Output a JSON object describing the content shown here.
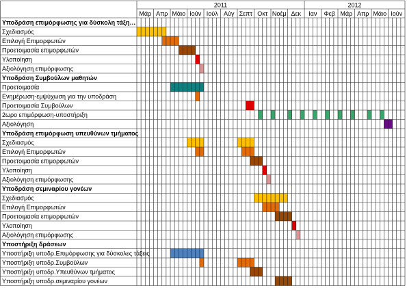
{
  "chart_data": {
    "type": "gantt",
    "years": [
      {
        "label": "2011",
        "span": 10
      },
      {
        "label": "2012",
        "span": 6
      }
    ],
    "months": [
      "Μάρ",
      "Απρ",
      "Μάιο",
      "Ιούν",
      "Ιούλ",
      "Αύγ",
      "Σεπτ",
      "Οκτ",
      "Νοέμ",
      "Δεκ",
      "Ιαν",
      "Φεβ",
      "Μάρ",
      "Απρ",
      "Μάιο",
      "Ιούν"
    ],
    "rows": [
      {
        "label": "Υποδράση επιμόρφωσης για δύσκολη τάξη…",
        "bold": true,
        "bars": []
      },
      {
        "label": "Σχεδιασμός",
        "bars": [
          {
            "start": 0,
            "length": 7,
            "color": "#ffc000"
          }
        ]
      },
      {
        "label": "Επιλογή Επιμορφωτών",
        "bars": [
          {
            "start": 6,
            "length": 4,
            "color": "#e36c09"
          }
        ]
      },
      {
        "label": "Προετοιμασία επιμορφωτών",
        "bars": [
          {
            "start": 10,
            "length": 4,
            "color": "#974806"
          }
        ]
      },
      {
        "label": "Υλοποίηση",
        "bars": [
          {
            "start": 14,
            "length": 1,
            "color": "#e00000"
          }
        ]
      },
      {
        "label": "Αξιολόγηση επιμόρφωσης",
        "bars": [
          {
            "start": 15,
            "length": 1,
            "color": "#d99694"
          }
        ]
      },
      {
        "label": "Υποδράση Συμβούλων μαθητών",
        "bold": true,
        "bars": []
      },
      {
        "label": "Προετοιμασία",
        "bars": [
          {
            "start": 8,
            "length": 8,
            "color": "#0f7f7f"
          }
        ]
      },
      {
        "label": "Ενημέρωση-εμψύχωση για την υποδράση",
        "bars": [
          {
            "start": 14,
            "length": 1,
            "color": "#e36c09"
          }
        ]
      },
      {
        "label": "Προετοιμασία Συμβούλων",
        "bars": [
          {
            "start": 26,
            "length": 2,
            "color": "#e00000"
          }
        ]
      },
      {
        "label": "2ωρο επιμόρφωση-υποστήριξη",
        "bars": [
          {
            "start": 29,
            "length": 1,
            "color": "#3aa46a"
          },
          {
            "start": 32,
            "length": 1,
            "color": "#3aa46a"
          },
          {
            "start": 36,
            "length": 1,
            "color": "#3aa46a"
          },
          {
            "start": 39,
            "length": 1,
            "color": "#3aa46a"
          },
          {
            "start": 42,
            "length": 1,
            "color": "#3aa46a"
          },
          {
            "start": 45,
            "length": 1,
            "color": "#3aa46a"
          },
          {
            "start": 48,
            "length": 1,
            "color": "#3aa46a"
          },
          {
            "start": 51,
            "length": 1,
            "color": "#3aa46a"
          },
          {
            "start": 55,
            "length": 1,
            "color": "#3aa46a"
          },
          {
            "start": 58,
            "length": 1,
            "color": "#3aa46a"
          }
        ]
      },
      {
        "label": "Αξιολόγηση",
        "bars": [
          {
            "start": 59,
            "length": 2,
            "color": "#660d82"
          }
        ]
      },
      {
        "label": "Υποδράση επιμόρφωση υπευθύνων τμήματος",
        "bold": true,
        "bars": []
      },
      {
        "label": "Σχεδιασμός",
        "bars": [
          {
            "start": 12,
            "length": 4,
            "color": "#ffc000"
          },
          {
            "start": 24,
            "length": 4,
            "color": "#ffc000"
          }
        ]
      },
      {
        "label": "Επιλογή Επιμορφωτών",
        "bars": [
          {
            "start": 14,
            "length": 2,
            "color": "#e36c09"
          },
          {
            "start": 25,
            "length": 3,
            "color": "#e36c09"
          }
        ]
      },
      {
        "label": "Προετοιμασία επιμορφωτών",
        "bars": [
          {
            "start": 27,
            "length": 3,
            "color": "#974806"
          }
        ]
      },
      {
        "label": "Υλοποίηση",
        "bars": [
          {
            "start": 30,
            "length": 1,
            "color": "#e00000"
          }
        ]
      },
      {
        "label": "Αξιολόγηση επιμόρφωσης",
        "bars": [
          {
            "start": 31,
            "length": 1,
            "color": "#d99694"
          }
        ]
      },
      {
        "label": "Υποδράση σεμιναρίου γονέων",
        "bold": true,
        "bars": []
      },
      {
        "label": "Σχεδιασμός",
        "bars": [
          {
            "start": 28,
            "length": 8,
            "color": "#ffc000"
          }
        ]
      },
      {
        "label": "Επιλογή Επιμορφωτών",
        "bars": [
          {
            "start": 30,
            "length": 4,
            "color": "#e36c09"
          }
        ]
      },
      {
        "label": "Προετοιμασία επιμορφωτών",
        "bars": [
          {
            "start": 33,
            "length": 4,
            "color": "#974806"
          }
        ]
      },
      {
        "label": "Υλοποίηση",
        "bars": [
          {
            "start": 37,
            "length": 1,
            "color": "#e00000"
          }
        ]
      },
      {
        "label": "Αξιολόγηση επιμόρφωσης",
        "bars": [
          {
            "start": 38,
            "length": 1,
            "color": "#d99694"
          }
        ]
      },
      {
        "label": "Υποστήριξη δράσεων",
        "bold": true,
        "bars": []
      },
      {
        "label": "Υποστήριξη υποδρ.Επιμόρφωσης για δύσκολες τάξεις",
        "bars": [
          {
            "start": 8,
            "length": 8,
            "color": "#4f81bd"
          }
        ]
      },
      {
        "label": "Υποστήριξη υποδρ.Συμβούλων",
        "bars": [
          {
            "start": 15,
            "length": 1,
            "color": "#e36c09"
          },
          {
            "start": 24,
            "length": 4,
            "color": "#e36c09"
          }
        ]
      },
      {
        "label": "Υποστήριξη υποδρ.Υπευθύνων τμήματος",
        "bars": [
          {
            "start": 27,
            "length": 3,
            "color": "#974806"
          }
        ]
      },
      {
        "label": "Υποστήριξη υποδρ.σεμιναρίου γονέων",
        "bars": [
          {
            "start": 33,
            "length": 4,
            "color": "#974806"
          }
        ]
      }
    ]
  }
}
